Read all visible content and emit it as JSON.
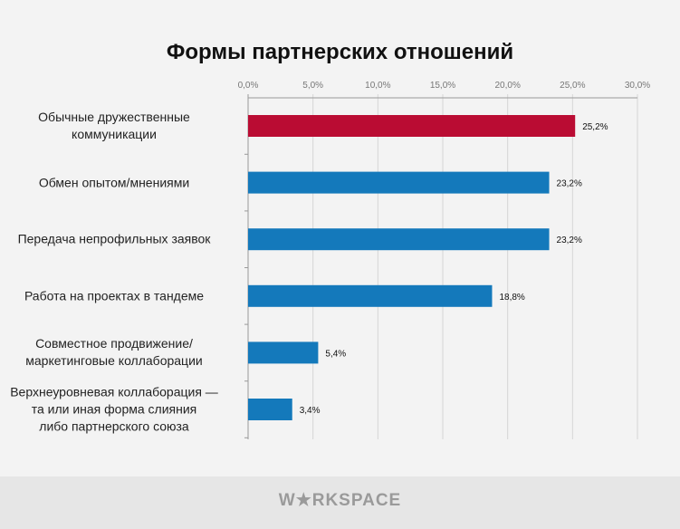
{
  "chart_data": {
    "type": "bar",
    "orientation": "horizontal",
    "title": "Формы партнерских отношений",
    "categories": [
      "Обычные дружественные\nкоммуникации",
      "Обмен опытом/мнениями",
      "Передача непрофильных заявок",
      "Работа на проектах в тандеме",
      "Совместное продвижение/\nмаркетинговые коллаборации",
      "Верхнеуровневая коллаборация —\nта или иная форма слияния\nлибо партнерского союза"
    ],
    "values": [
      25.2,
      23.2,
      23.2,
      18.8,
      5.4,
      3.4
    ],
    "data_labels": [
      "25,2%",
      "23,2%",
      "23,2%",
      "18,8%",
      "5,4%",
      "3,4%"
    ],
    "xlim": [
      0,
      30
    ],
    "x_ticks": [
      0,
      5,
      10,
      15,
      20,
      25,
      30
    ],
    "x_tick_labels": [
      "0,0%",
      "5,0%",
      "10,0%",
      "15,0%",
      "20,0%",
      "25,0%",
      "30,0%"
    ],
    "axis_position": "top",
    "grid": true,
    "colors": {
      "highlight": "#ba0c33",
      "default": "#1479bb"
    }
  },
  "footer": {
    "logo": "WORKSPACE"
  }
}
